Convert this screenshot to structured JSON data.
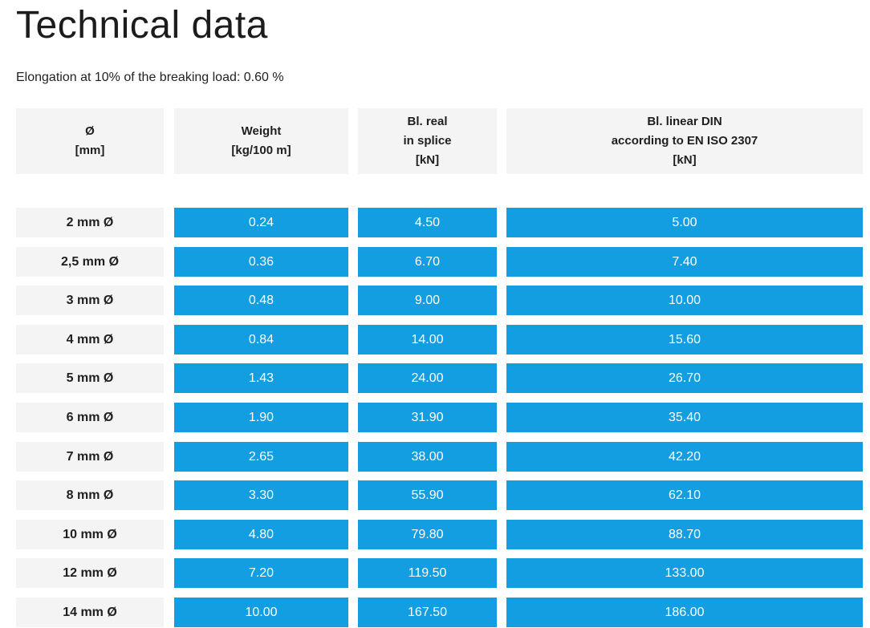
{
  "title": "Technical data",
  "subtitle": "Elongation at 10% of the breaking load: 0.60 %",
  "colors": {
    "accent": "#129ee0",
    "header_bg": "#f4f4f4"
  },
  "headers": [
    {
      "lines": [
        "Ø",
        "[mm]"
      ]
    },
    {
      "lines": [
        "Weight",
        "[kg/100 m]"
      ]
    },
    {
      "lines": [
        "Bl. real",
        "in splice",
        "[kN]"
      ]
    },
    {
      "lines": [
        "Bl. linear DIN",
        "according to EN ISO 2307",
        "[kN]"
      ]
    }
  ],
  "rows": [
    [
      "2 mm Ø",
      "0.24",
      "4.50",
      "5.00"
    ],
    [
      "2,5 mm Ø",
      "0.36",
      "6.70",
      "7.40"
    ],
    [
      "3 mm Ø",
      "0.48",
      "9.00",
      "10.00"
    ],
    [
      "4 mm Ø",
      "0.84",
      "14.00",
      "15.60"
    ],
    [
      "5 mm Ø",
      "1.43",
      "24.00",
      "26.70"
    ],
    [
      "6 mm Ø",
      "1.90",
      "31.90",
      "35.40"
    ],
    [
      "7 mm Ø",
      "2.65",
      "38.00",
      "42.20"
    ],
    [
      "8 mm Ø",
      "3.30",
      "55.90",
      "62.10"
    ],
    [
      "10 mm Ø",
      "4.80",
      "79.80",
      "88.70"
    ],
    [
      "12 mm Ø",
      "7.20",
      "119.50",
      "133.00"
    ],
    [
      "14 mm Ø",
      "10.00",
      "167.50",
      "186.00"
    ]
  ]
}
